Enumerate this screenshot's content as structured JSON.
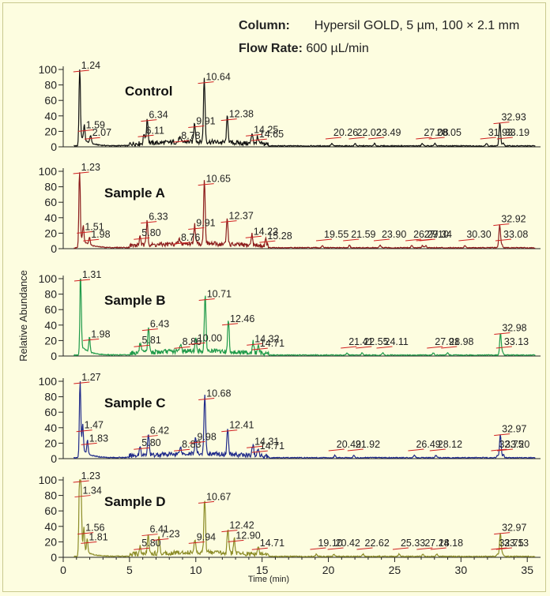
{
  "header": {
    "column_label": "Column:",
    "column_value": "Hypersil GOLD, 5 µm, 100 × 2.1 mm",
    "flow_label": "Flow Rate:",
    "flow_value": "600 µL/min"
  },
  "chart_data": {
    "type": "line",
    "xlabel": "Time (min)",
    "ylabel": "Relative Abundance",
    "xlim": [
      0,
      36
    ],
    "ylim": [
      0,
      100
    ],
    "xticks": [
      0,
      5,
      10,
      15,
      20,
      25,
      30,
      35
    ],
    "yticks": [
      0,
      20,
      40,
      60,
      80,
      100
    ],
    "series": [
      {
        "name": "Control",
        "color": "#111111",
        "peaks": [
          {
            "label": "1.24",
            "x": 1.24,
            "y": 100
          },
          {
            "label": "1.59",
            "x": 1.59,
            "y": 20
          },
          {
            "label": "2.07",
            "x": 2.07,
            "y": 10
          },
          {
            "label": "6.11",
            "x": 6.11,
            "y": 13
          },
          {
            "label": "6.34",
            "x": 6.34,
            "y": 33
          },
          {
            "label": "8.78",
            "x": 8.78,
            "y": 6
          },
          {
            "label": "9.91",
            "x": 9.91,
            "y": 25
          },
          {
            "label": "10.64",
            "x": 10.64,
            "y": 82
          },
          {
            "label": "12.38",
            "x": 12.38,
            "y": 34
          },
          {
            "label": "14.25",
            "x": 14.25,
            "y": 14
          },
          {
            "label": "14.65",
            "x": 14.65,
            "y": 8
          },
          {
            "label": "20.26",
            "x": 20.26,
            "y": 3
          },
          {
            "label": "22.02",
            "x": 22.02,
            "y": 3
          },
          {
            "label": "23.49",
            "x": 23.49,
            "y": 3
          },
          {
            "label": "27.08",
            "x": 27.08,
            "y": 3
          },
          {
            "label": "28.05",
            "x": 28.05,
            "y": 3
          },
          {
            "label": "31.93",
            "x": 31.93,
            "y": 3
          },
          {
            "label": "32.93",
            "x": 32.93,
            "y": 30
          },
          {
            "label": "33.19",
            "x": 33.19,
            "y": 4
          }
        ]
      },
      {
        "name": "Sample A",
        "color": "#8c1c1c",
        "peaks": [
          {
            "label": "1.23",
            "x": 1.23,
            "y": 100
          },
          {
            "label": "1.51",
            "x": 1.51,
            "y": 20
          },
          {
            "label": "1.98",
            "x": 1.98,
            "y": 10
          },
          {
            "label": "5.80",
            "x": 5.8,
            "y": 12
          },
          {
            "label": "6.33",
            "x": 6.33,
            "y": 33
          },
          {
            "label": "8.76",
            "x": 8.76,
            "y": 6
          },
          {
            "label": "9.91",
            "x": 9.91,
            "y": 25
          },
          {
            "label": "10.65",
            "x": 10.65,
            "y": 82
          },
          {
            "label": "12.37",
            "x": 12.37,
            "y": 34
          },
          {
            "label": "14.23",
            "x": 14.23,
            "y": 14
          },
          {
            "label": "15.28",
            "x": 15.28,
            "y": 8
          },
          {
            "label": "19.55",
            "x": 19.55,
            "y": 3
          },
          {
            "label": "21.59",
            "x": 21.59,
            "y": 3
          },
          {
            "label": "23.90",
            "x": 23.9,
            "y": 3
          },
          {
            "label": "26.29",
            "x": 26.29,
            "y": 3
          },
          {
            "label": "27.10",
            "x": 27.1,
            "y": 3
          },
          {
            "label": "27.34",
            "x": 27.34,
            "y": 3
          },
          {
            "label": "30.30",
            "x": 30.3,
            "y": 3
          },
          {
            "label": "32.92",
            "x": 32.92,
            "y": 30
          },
          {
            "label": "33.08",
            "x": 33.08,
            "y": 4
          }
        ]
      },
      {
        "name": "Sample B",
        "color": "#1f9a4a",
        "peaks": [
          {
            "label": "1.31",
            "x": 1.31,
            "y": 100
          },
          {
            "label": "1.98",
            "x": 1.98,
            "y": 20
          },
          {
            "label": "5.81",
            "x": 5.81,
            "y": 12
          },
          {
            "label": "6.43",
            "x": 6.43,
            "y": 33
          },
          {
            "label": "8.86",
            "x": 8.86,
            "y": 10
          },
          {
            "label": "10.00",
            "x": 10.0,
            "y": 15
          },
          {
            "label": "10.71",
            "x": 10.71,
            "y": 72
          },
          {
            "label": "12.46",
            "x": 12.46,
            "y": 40
          },
          {
            "label": "14.32",
            "x": 14.32,
            "y": 14
          },
          {
            "label": "14.71",
            "x": 14.71,
            "y": 8
          },
          {
            "label": "21.41",
            "x": 21.41,
            "y": 3
          },
          {
            "label": "22.55",
            "x": 22.55,
            "y": 3
          },
          {
            "label": "24.11",
            "x": 24.11,
            "y": 3
          },
          {
            "label": "27.91",
            "x": 27.91,
            "y": 3
          },
          {
            "label": "28.98",
            "x": 28.98,
            "y": 3
          },
          {
            "label": "32.98",
            "x": 32.98,
            "y": 28
          },
          {
            "label": "33.13",
            "x": 33.13,
            "y": 4
          }
        ]
      },
      {
        "name": "Sample C",
        "color": "#1f2a8a",
        "peaks": [
          {
            "label": "1.27",
            "x": 1.27,
            "y": 100
          },
          {
            "label": "1.47",
            "x": 1.47,
            "y": 35
          },
          {
            "label": "1.83",
            "x": 1.83,
            "y": 18
          },
          {
            "label": "5.80",
            "x": 5.8,
            "y": 12
          },
          {
            "label": "6.42",
            "x": 6.42,
            "y": 28
          },
          {
            "label": "8.83",
            "x": 8.83,
            "y": 10
          },
          {
            "label": "9.98",
            "x": 9.98,
            "y": 20
          },
          {
            "label": "10.68",
            "x": 10.68,
            "y": 76
          },
          {
            "label": "12.41",
            "x": 12.41,
            "y": 35
          },
          {
            "label": "14.31",
            "x": 14.31,
            "y": 14
          },
          {
            "label": "14.71",
            "x": 14.71,
            "y": 8
          },
          {
            "label": "20.49",
            "x": 20.49,
            "y": 3
          },
          {
            "label": "21.92",
            "x": 21.92,
            "y": 3
          },
          {
            "label": "26.49",
            "x": 26.49,
            "y": 3
          },
          {
            "label": "28.12",
            "x": 28.12,
            "y": 3
          },
          {
            "label": "32.75",
            "x": 32.75,
            "y": 3
          },
          {
            "label": "32.97",
            "x": 32.97,
            "y": 30
          },
          {
            "label": "33.20",
            "x": 33.2,
            "y": 4
          }
        ]
      },
      {
        "name": "Sample D",
        "color": "#8c8c28",
        "peaks": [
          {
            "label": "1.23",
            "x": 1.23,
            "y": 100
          },
          {
            "label": "1.34",
            "x": 1.34,
            "y": 78
          },
          {
            "label": "1.56",
            "x": 1.56,
            "y": 30
          },
          {
            "label": "1.81",
            "x": 1.81,
            "y": 18
          },
          {
            "label": "5.80",
            "x": 5.8,
            "y": 10
          },
          {
            "label": "6.41",
            "x": 6.41,
            "y": 28
          },
          {
            "label": "7.23",
            "x": 7.23,
            "y": 22
          },
          {
            "label": "9.94",
            "x": 9.94,
            "y": 18
          },
          {
            "label": "10.67",
            "x": 10.67,
            "y": 70
          },
          {
            "label": "12.42",
            "x": 12.42,
            "y": 33
          },
          {
            "label": "12.90",
            "x": 12.9,
            "y": 20
          },
          {
            "label": "14.71",
            "x": 14.71,
            "y": 10
          },
          {
            "label": "19.10",
            "x": 19.1,
            "y": 3
          },
          {
            "label": "20.42",
            "x": 20.42,
            "y": 3
          },
          {
            "label": "22.62",
            "x": 22.62,
            "y": 3
          },
          {
            "label": "25.33",
            "x": 25.33,
            "y": 3
          },
          {
            "label": "27.14",
            "x": 27.14,
            "y": 3
          },
          {
            "label": "28.18",
            "x": 28.18,
            "y": 3
          },
          {
            "label": "32.75",
            "x": 32.75,
            "y": 3
          },
          {
            "label": "32.97",
            "x": 32.97,
            "y": 30
          },
          {
            "label": "33.13",
            "x": 33.13,
            "y": 4
          }
        ]
      }
    ]
  }
}
